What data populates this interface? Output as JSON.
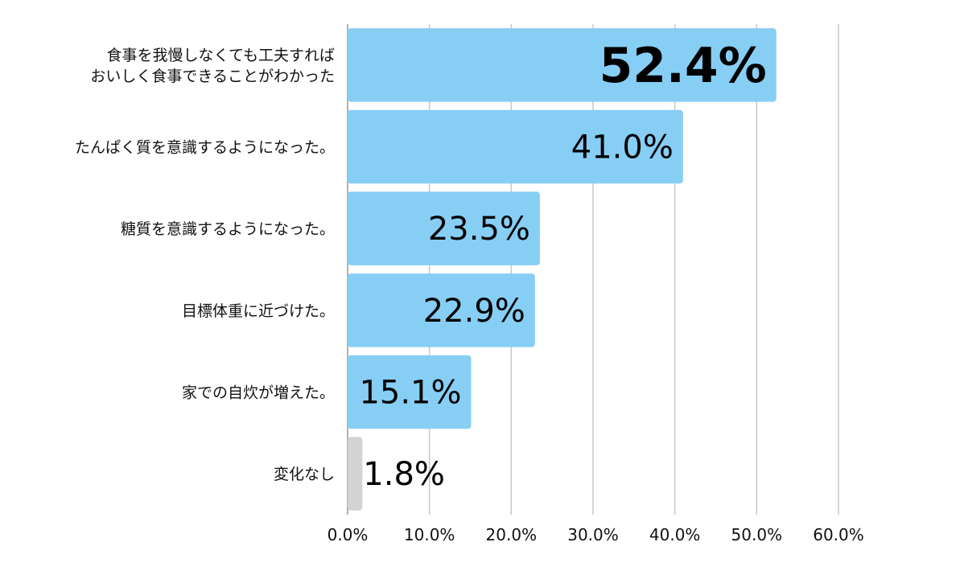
{
  "chart_data": {
    "type": "bar",
    "orientation": "horizontal",
    "categories": [
      [
        "食事を我慢しなくても工夫すれば",
        "おいしく食事できることがわかった"
      ],
      [
        "たんぱく質を意識するようになった。"
      ],
      [
        "糖質を意識するようになった。"
      ],
      [
        "目標体重に近づけた。"
      ],
      [
        "家での自炊が増えた。"
      ],
      [
        "変化なし"
      ]
    ],
    "values": [
      52.4,
      41.0,
      23.5,
      22.9,
      15.1,
      1.8
    ],
    "value_labels": [
      "52.4%",
      "41.0%",
      "23.5%",
      "22.9%",
      "15.1%",
      "1.8%"
    ],
    "bar_colors": [
      "#87cef5",
      "#87cef5",
      "#87cef5",
      "#87cef5",
      "#87cef5",
      "#d3d3d3"
    ],
    "emphasized_index": 0,
    "xlim": [
      0,
      60
    ],
    "xticks": [
      0,
      10,
      20,
      30,
      40,
      50,
      60
    ],
    "xtick_labels": [
      "0.0%",
      "10.0%",
      "20.0%",
      "30.0%",
      "40.0%",
      "50.0%",
      "60.0%"
    ],
    "grid": true,
    "title": "",
    "xlabel": "",
    "ylabel": ""
  }
}
